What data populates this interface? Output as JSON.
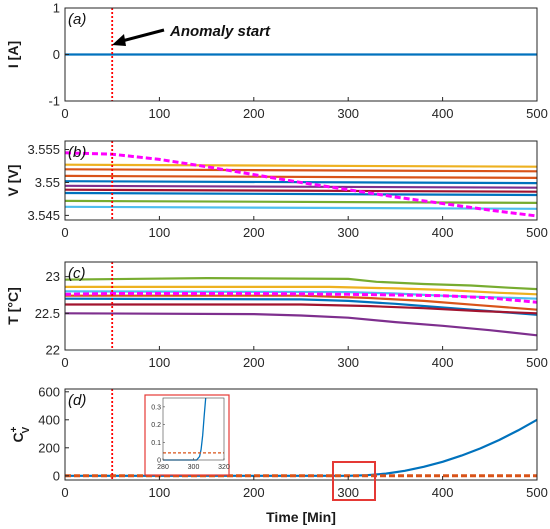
{
  "chart_data": [
    {
      "type": "line",
      "panel_label": "(a)",
      "ylabel": "I [A]",
      "xlim": [
        0,
        500
      ],
      "ylim": [
        -1,
        1
      ],
      "xticks": [
        0,
        100,
        200,
        300,
        400,
        500
      ],
      "yticks": [
        -1,
        0,
        1
      ],
      "annotation": "Anomaly start",
      "anomaly_x": 50,
      "series": [
        {
          "color": "#0072BD",
          "x": [
            0,
            500
          ],
          "y": [
            0,
            0
          ]
        }
      ]
    },
    {
      "type": "line",
      "panel_label": "(b)",
      "ylabel": "V [V]",
      "xlim": [
        0,
        500
      ],
      "ylim": [
        3.5443,
        3.5563
      ],
      "xticks": [
        0,
        100,
        200,
        300,
        400,
        500
      ],
      "yticks": [
        3.545,
        3.55,
        3.555
      ],
      "anomaly_x": 50,
      "series": [
        {
          "color": "#EDB120",
          "x": [
            0,
            500
          ],
          "y": [
            3.5527,
            3.5524
          ]
        },
        {
          "color": "#D95319",
          "x": [
            0,
            500
          ],
          "y": [
            3.552,
            3.5517
          ]
        },
        {
          "color": "#D95319",
          "x": [
            0,
            500
          ],
          "y": [
            3.551,
            3.5507
          ]
        },
        {
          "color": "#0072BD",
          "x": [
            0,
            500
          ],
          "y": [
            3.5502,
            3.5499
          ]
        },
        {
          "color": "#7E2F8E",
          "x": [
            0,
            500
          ],
          "y": [
            3.5495,
            3.5492
          ]
        },
        {
          "color": "#A2142F",
          "x": [
            0,
            500
          ],
          "y": [
            3.5489,
            3.5486
          ]
        },
        {
          "color": "#0072BD",
          "x": [
            0,
            500
          ],
          "y": [
            3.5484,
            3.5481
          ]
        },
        {
          "color": "#77AC30",
          "x": [
            0,
            500
          ],
          "y": [
            3.5472,
            3.5469
          ]
        },
        {
          "color": "#4DBEEE",
          "x": [
            0,
            500
          ],
          "y": [
            3.5463,
            3.546
          ]
        },
        {
          "color": "#FF00FF",
          "dashed": true,
          "x": [
            0,
            50,
            100,
            150,
            200,
            250,
            300,
            350,
            400,
            450,
            500
          ],
          "y": [
            3.5545,
            3.5543,
            3.5535,
            3.5524,
            3.5512,
            3.55,
            3.5489,
            3.5478,
            3.5468,
            3.5458,
            3.5449
          ]
        }
      ]
    },
    {
      "type": "line",
      "panel_label": "(c)",
      "ylabel": "T [°C]",
      "xlim": [
        0,
        500
      ],
      "ylim": [
        22,
        23.2
      ],
      "xticks": [
        0,
        100,
        200,
        300,
        400,
        500
      ],
      "yticks": [
        22,
        22.5,
        23
      ],
      "anomaly_x": 50,
      "series": [
        {
          "color": "#77AC30",
          "x": [
            0,
            150,
            300,
            330,
            380,
            430,
            470,
            500
          ],
          "y": [
            22.96,
            22.98,
            22.97,
            22.93,
            22.9,
            22.88,
            22.85,
            22.83
          ]
        },
        {
          "color": "#EDB120",
          "x": [
            0,
            280,
            350,
            400,
            460,
            500
          ],
          "y": [
            22.86,
            22.86,
            22.84,
            22.82,
            22.78,
            22.76
          ]
        },
        {
          "color": "#4DBEEE",
          "x": [
            0,
            300,
            350,
            400,
            450,
            500
          ],
          "y": [
            22.8,
            22.79,
            22.77,
            22.74,
            22.72,
            22.7
          ]
        },
        {
          "color": "#D95319",
          "x": [
            0,
            250,
            320,
            380,
            440,
            500
          ],
          "y": [
            22.74,
            22.74,
            22.71,
            22.67,
            22.61,
            22.55
          ]
        },
        {
          "color": "#0072BD",
          "x": [
            0,
            250,
            300,
            350,
            400,
            450,
            500
          ],
          "y": [
            22.7,
            22.69,
            22.67,
            22.63,
            22.58,
            22.53,
            22.48
          ]
        },
        {
          "color": "#A2142F",
          "x": [
            0,
            250,
            320,
            380,
            440,
            500
          ],
          "y": [
            22.62,
            22.62,
            22.6,
            22.57,
            22.53,
            22.5
          ]
        },
        {
          "color": "#7E2F8E",
          "x": [
            0,
            200,
            250,
            300,
            350,
            400,
            450,
            500
          ],
          "y": [
            22.5,
            22.49,
            22.47,
            22.44,
            22.38,
            22.33,
            22.27,
            22.2
          ]
        },
        {
          "color": "#FF00FF",
          "dashed": true,
          "x": [
            0,
            50,
            100,
            200,
            300,
            400,
            450,
            500
          ],
          "y": [
            22.76,
            22.77,
            22.77,
            22.77,
            22.76,
            22.74,
            22.71,
            22.65
          ]
        }
      ]
    },
    {
      "type": "line",
      "panel_label": "(d)",
      "ylabel": "C",
      "ylabel_super": "+",
      "ylabel_sub": "V",
      "xlabel": "Time [Min]",
      "xlim": [
        0,
        500
      ],
      "ylim": [
        -30,
        620
      ],
      "xticks": [
        0,
        100,
        200,
        300,
        400,
        500
      ],
      "yticks": [
        0,
        200,
        400,
        600
      ],
      "anomaly_x": 50,
      "series": [
        {
          "color": "#0072BD",
          "x": [
            0,
            300,
            320,
            340,
            360,
            380,
            400,
            420,
            440,
            460,
            480,
            500
          ],
          "y": [
            0,
            0,
            4,
            16,
            36,
            64,
            100,
            144,
            196,
            256,
            324,
            400
          ]
        },
        {
          "color": "#D95319",
          "dashed": true,
          "x": [
            0,
            500
          ],
          "y": [
            0,
            0
          ]
        }
      ],
      "inset": {
        "xlim": [
          280,
          320
        ],
        "ylim": [
          0,
          0.35
        ],
        "xticks": [
          280,
          300,
          320
        ],
        "yticks": [
          0,
          0.1,
          0.2,
          0.3
        ],
        "series": [
          {
            "color": "#0072BD",
            "x": [
              280,
              302,
              304,
              305,
              306,
              307,
              308
            ],
            "y": [
              0,
              0,
              0.02,
              0.06,
              0.14,
              0.25,
              0.35
            ]
          },
          {
            "color": "#D95319",
            "dashed": true,
            "x": [
              280,
              320
            ],
            "y": [
              0.04,
              0.04
            ]
          }
        ]
      }
    }
  ]
}
